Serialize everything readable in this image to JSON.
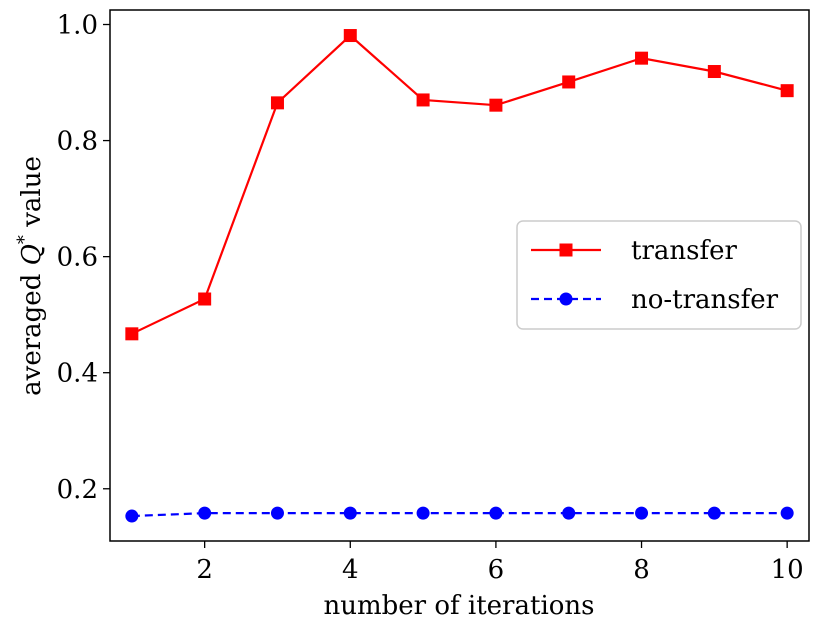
{
  "chart_data": {
    "type": "line",
    "title": "",
    "xlabel": "number of iterations",
    "ylabel_parts": {
      "pre": "averaged ",
      "var": "Q",
      "sup": "*",
      "post": " value"
    },
    "xlim": [
      0.7,
      10.3
    ],
    "ylim": [
      0.11,
      1.025
    ],
    "xticks": [
      2,
      4,
      6,
      8,
      10
    ],
    "yticks": [
      0.2,
      0.4,
      0.6,
      0.8,
      1.0
    ],
    "ytick_labels": [
      "0.2",
      "0.4",
      "0.6",
      "0.8",
      "1.0"
    ],
    "grid": false,
    "legend_position": "center-right",
    "x": [
      1,
      2,
      3,
      4,
      5,
      6,
      7,
      8,
      9,
      10
    ],
    "series": [
      {
        "name": "transfer",
        "color": "#ff0000",
        "marker": "square",
        "linestyle": "solid",
        "values": [
          0.467,
          0.527,
          0.865,
          0.981,
          0.87,
          0.861,
          0.901,
          0.942,
          0.919,
          0.886
        ]
      },
      {
        "name": "no-transfer",
        "color": "#0000ff",
        "marker": "circle",
        "linestyle": "dashed",
        "values": [
          0.153,
          0.158,
          0.158,
          0.158,
          0.158,
          0.158,
          0.158,
          0.158,
          0.158,
          0.158
        ]
      }
    ]
  }
}
